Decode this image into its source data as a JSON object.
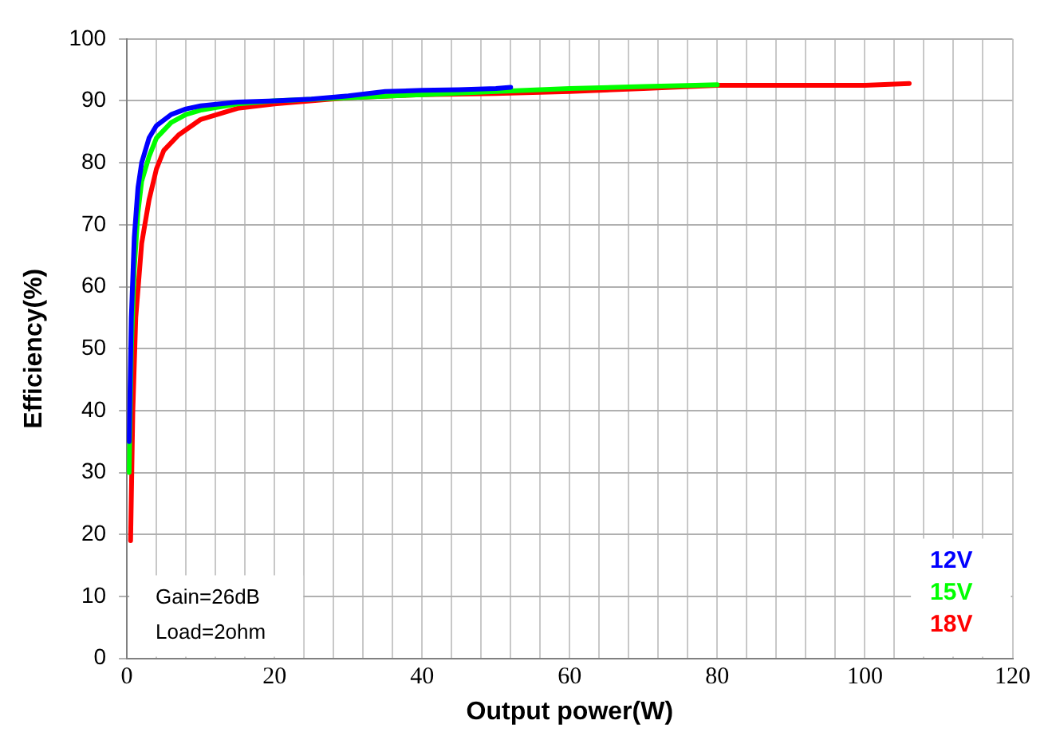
{
  "chart_data": {
    "type": "line",
    "xlabel": "Output power(W)",
    "ylabel": "Efficiency(%)",
    "xlim": [
      0,
      120
    ],
    "ylim": [
      0,
      100
    ],
    "xticks": [
      0,
      {
        "value": 4,
        "label": null
      },
      {
        "value": 8,
        "label": null
      },
      {
        "value": 12,
        "label": null
      },
      {
        "value": 16,
        "label": null
      },
      20,
      {
        "value": 24,
        "label": null
      },
      {
        "value": 28,
        "label": null
      },
      {
        "value": 32,
        "label": null
      },
      {
        "value": 36,
        "label": null
      },
      40,
      {
        "value": 44,
        "label": null
      },
      {
        "value": 48,
        "label": null
      },
      {
        "value": 52,
        "label": null
      },
      {
        "value": 56,
        "label": null
      },
      60,
      {
        "value": 64,
        "label": null
      },
      {
        "value": 68,
        "label": null
      },
      {
        "value": 72,
        "label": null
      },
      {
        "value": 76,
        "label": null
      },
      80,
      {
        "value": 84,
        "label": null
      },
      {
        "value": 88,
        "label": null
      },
      {
        "value": 92,
        "label": null
      },
      {
        "value": 96,
        "label": null
      },
      100,
      {
        "value": 104,
        "label": null
      },
      {
        "value": 108,
        "label": null
      },
      {
        "value": 112,
        "label": null
      },
      {
        "value": 116,
        "label": null
      },
      120
    ],
    "yticks": [
      0,
      10,
      20,
      30,
      40,
      50,
      60,
      70,
      80,
      90,
      100
    ],
    "grid": true,
    "legend": "bottom right",
    "marker": "none",
    "line_style": "solid",
    "annotations": [
      "Gain=26dB",
      "Load=2ohm"
    ],
    "series": [
      {
        "name": "12V",
        "color": "#0000ff",
        "x": [
          0.3,
          0.6,
          1,
          1.5,
          2,
          3,
          4,
          6,
          8,
          10,
          15,
          20,
          25,
          30,
          35,
          40,
          45,
          50,
          52
        ],
        "values": [
          35,
          55,
          68,
          76,
          80,
          84,
          86,
          87.8,
          88.7,
          89.2,
          89.8,
          90,
          90.3,
          90.8,
          91.5,
          91.7,
          91.8,
          92,
          92.2
        ]
      },
      {
        "name": "15V",
        "color": "#00ff00",
        "x": [
          0.3,
          0.6,
          1,
          1.5,
          2,
          3,
          4,
          6,
          8,
          10,
          15,
          20,
          30,
          40,
          50,
          60,
          70,
          77,
          80
        ],
        "values": [
          30,
          50,
          63,
          72,
          77,
          81,
          84,
          86.5,
          87.8,
          88.5,
          89.5,
          90,
          90.5,
          91,
          91.5,
          92,
          92.3,
          92.5,
          92.6
        ]
      },
      {
        "name": "18V",
        "color": "#ff0000",
        "x": [
          0.5,
          0.8,
          1.2,
          2,
          3,
          4,
          5,
          7,
          10,
          15,
          20,
          30,
          40,
          50,
          60,
          70,
          80,
          90,
          100,
          106
        ],
        "values": [
          19,
          40,
          55,
          67,
          74,
          79,
          82,
          84.5,
          87,
          88.8,
          89.5,
          90.5,
          91,
          91.2,
          91.5,
          92,
          92.5,
          92.5,
          92.5,
          92.8
        ]
      }
    ]
  }
}
